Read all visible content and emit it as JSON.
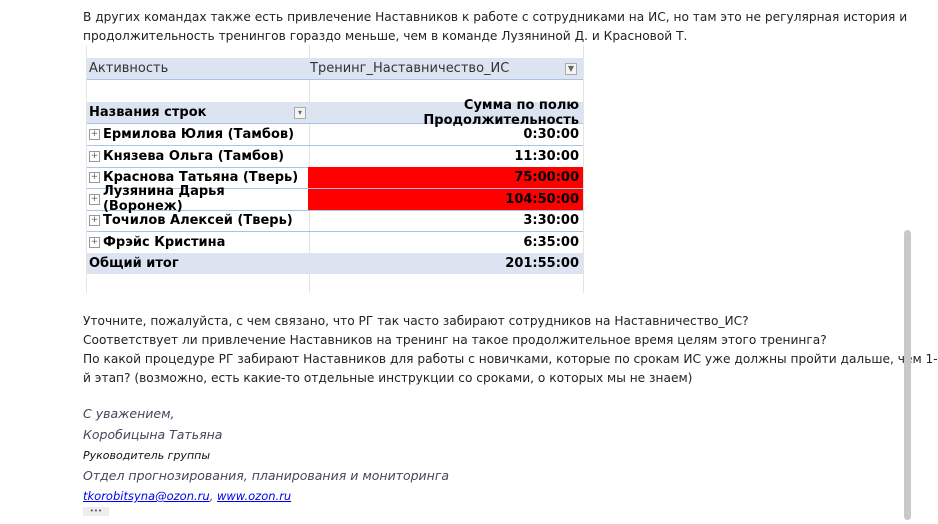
{
  "intro": [
    "В других командах также есть привлечение Наставников к работе с сотрудниками на ИС, но там это не регулярная история и",
    "продолжительность тренингов гораздо меньше, чем в команде Лузяниной Д. и Красновой Т."
  ],
  "pivot": {
    "filter_label": "Активность",
    "filter_value": "Тренинг_Наставничество_ИС",
    "row_header": "Названия строк",
    "value_header": "Сумма по полю Продолжительность",
    "rows": [
      {
        "name": "Ермилова Юлия (Тамбов)",
        "value": "0:30:00",
        "highlight": false
      },
      {
        "name": "Князева Ольга (Тамбов)",
        "value": "11:30:00",
        "highlight": false
      },
      {
        "name": "Краснова Татьяна (Тверь)",
        "value": "75:00:00",
        "highlight": true
      },
      {
        "name": "Лузянина Дарья (Воронеж)",
        "value": "104:50:00",
        "highlight": true
      },
      {
        "name": "Точилов Алексей (Тверь)",
        "value": "3:30:00",
        "highlight": false
      },
      {
        "name": "Фрэйс Кристина",
        "value": "6:35:00",
        "highlight": false
      }
    ],
    "total_label": "Общий итог",
    "total_value": "201:55:00",
    "highlight_color": "#ff0000",
    "header_color": "#dce4f2",
    "expand_icon": "plus-box-icon"
  },
  "questions": [
    "Уточните, пожалуйста, с чем связано, что РГ так часто забирают сотрудников на Наставничество_ИС?",
    "Соответствует ли привлечение Наставников на тренинг на такое продолжительное время целям этого тренинга?",
    "По какой процедуре РГ забирают Наставников для работы с новичками, которые по срокам ИС уже должны пройти дальше, чем 1-",
    "й этап? (возможно, есть какие-то отдельные инструкции со сроками, о которых мы не знаем)"
  ],
  "signature": {
    "greeting": "С уважением,",
    "name": "Коробицына Татьяна",
    "position": "Руководитель группы",
    "department": "Отдел прогнозирования, планирования и мониторинга",
    "email": "tkorobitsyna@ozon.ru",
    "separator": ",",
    "website": "www.ozon.ru",
    "more": "•••"
  }
}
